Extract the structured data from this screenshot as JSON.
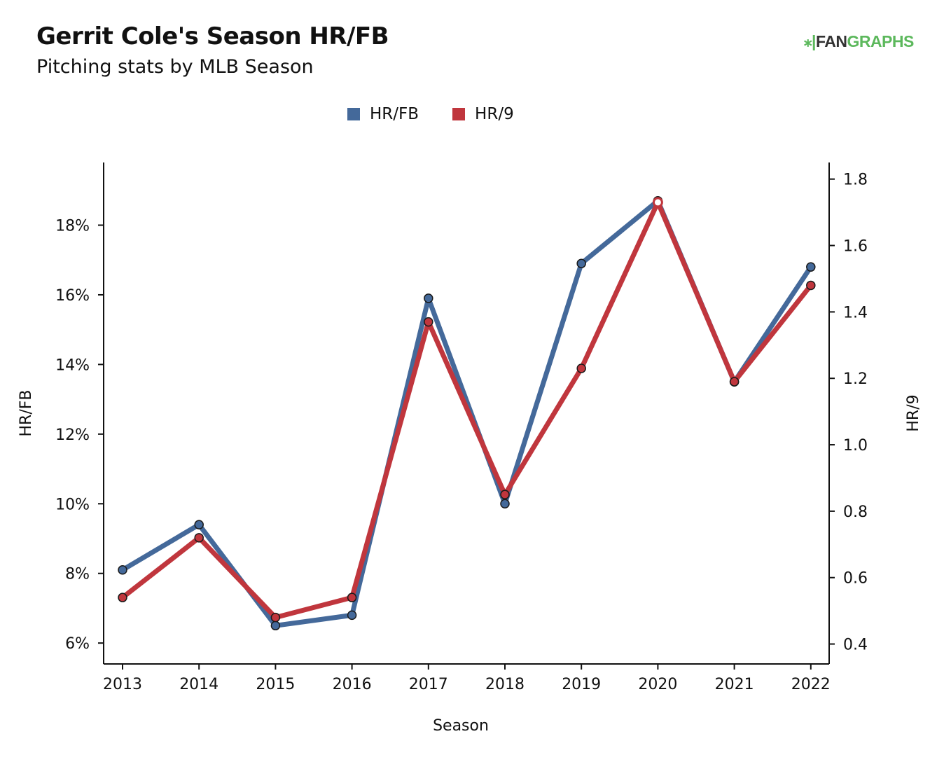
{
  "header": {
    "title": "Gerrit Cole's Season HR/FB",
    "subtitle": "Pitching stats by MLB Season"
  },
  "logo": {
    "text_fan": "FAN",
    "text_graphs": "GRAPHS"
  },
  "colors": {
    "hrfb": "#44699a",
    "hr9": "#c0363d"
  },
  "chart_data": {
    "type": "line",
    "categories": [
      "2013",
      "2014",
      "2015",
      "2016",
      "2017",
      "2018",
      "2019",
      "2020",
      "2021",
      "2022"
    ],
    "series": [
      {
        "name": "HR/FB",
        "axis": "left",
        "values": [
          8.1,
          9.4,
          6.5,
          6.8,
          15.9,
          10.0,
          16.9,
          18.7,
          13.5,
          16.8
        ]
      },
      {
        "name": "HR/9",
        "axis": "right",
        "values": [
          0.54,
          0.72,
          0.48,
          0.54,
          1.37,
          0.85,
          1.23,
          1.73,
          1.19,
          1.48
        ]
      }
    ],
    "xlabel": "Season",
    "ylabel_left": "HR/FB",
    "ylabel_right": "HR/9",
    "left_axis": {
      "min": 5.4,
      "max": 19.8,
      "ticks": [
        6,
        8,
        10,
        12,
        14,
        16,
        18
      ],
      "tick_labels": [
        "6%",
        "8%",
        "10%",
        "12%",
        "14%",
        "16%",
        "18%"
      ]
    },
    "right_axis": {
      "min": 0.34,
      "max": 1.85,
      "ticks": [
        0.4,
        0.6,
        0.8,
        1.0,
        1.2,
        1.4,
        1.6,
        1.8
      ],
      "tick_labels": [
        "0.4",
        "0.6",
        "0.8",
        "1.0",
        "1.2",
        "1.4",
        "1.6",
        "1.8"
      ]
    },
    "legend": "top-center",
    "grid": false,
    "highlighted_point": {
      "series": "HR/9",
      "category": "2020"
    }
  }
}
